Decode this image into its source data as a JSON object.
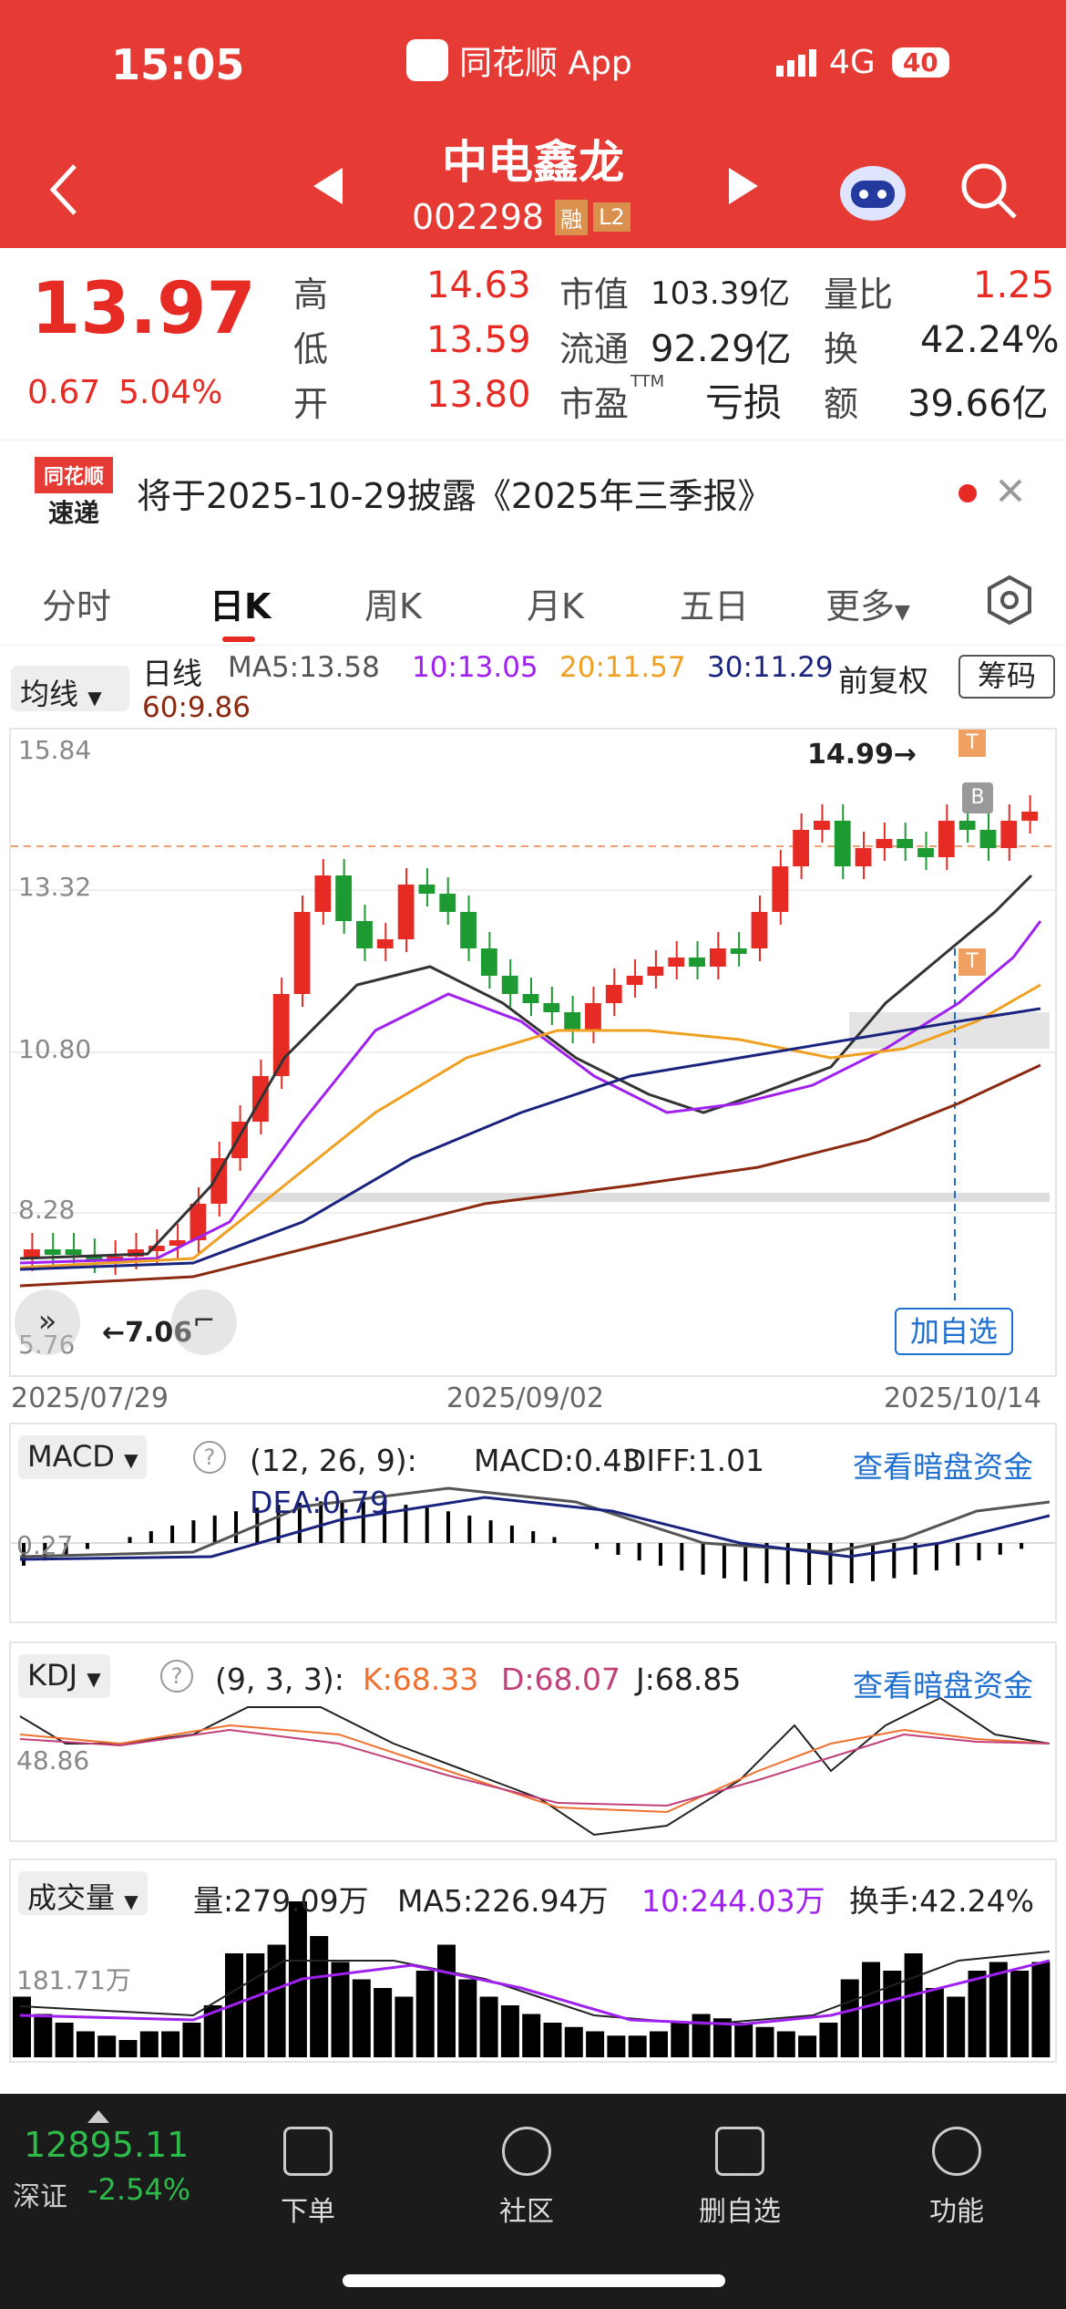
{
  "status_bar": {
    "time": "15:05",
    "app": "同花顺 App",
    "network": "4G",
    "battery": "40"
  },
  "header": {
    "stock_name": "中电鑫龙",
    "stock_code": "002298",
    "badge_margin": "融",
    "badge_level": "L2"
  },
  "quote": {
    "price": "13.97",
    "change": "0.67",
    "change_pct": "5.04%",
    "high_label": "高",
    "high": "14.63",
    "low_label": "低",
    "low": "13.59",
    "open_label": "开",
    "open": "13.80",
    "mcap_label": "市值",
    "mcap": "103.39亿",
    "float_label": "流通",
    "float": "92.29亿",
    "pe_label": "市盈",
    "pe_sup": "TTM",
    "pe": "亏损",
    "vr_label": "量比",
    "vr": "1.25",
    "turn_label": "换",
    "turn": "42.24%",
    "amt_label": "额",
    "amt": "39.66亿"
  },
  "notice": {
    "logo_top": "同花顺",
    "logo_bottom": "速递",
    "text": "将于2025-10-29披露《2025年三季报》"
  },
  "tabs": [
    "分时",
    "日K",
    "周K",
    "月K",
    "五日",
    "更多"
  ],
  "kline": {
    "ma_btn": "均线",
    "period": "日线",
    "ma5": "MA5:13.58",
    "ma10": "10:13.05",
    "ma20": "20:11.57",
    "ma30": "30:11.29",
    "ma60": "60:9.86",
    "adjust": "前复权",
    "chips": "筹码",
    "y_labels": [
      "15.84",
      "13.32",
      "10.80",
      "8.28",
      "5.76"
    ],
    "high_mark": "14.99→",
    "low_mark": "←7.06",
    "add_watch": "加自选",
    "dates": [
      "2025/07/29",
      "2025/09/02",
      "2025/10/14"
    ],
    "marker_b": "B",
    "marker_t": "T"
  },
  "macd": {
    "btn": "MACD",
    "params": "(12, 26, 9):",
    "macd": "MACD:0.43",
    "diff": "DIFF:1.01",
    "dea": "DEA:0.79",
    "link": "查看暗盘资金",
    "level": "0.27"
  },
  "kdj": {
    "btn": "KDJ",
    "params": "(9, 3, 3):",
    "k": "K:68.33",
    "d": "D:68.07",
    "j": "J:68.85",
    "link": "查看暗盘资金",
    "level": "48.86"
  },
  "vol": {
    "btn": "成交量",
    "vol": "量:279.09万",
    "ma5": "MA5:226.94万",
    "ma10": "10:244.03万",
    "turn": "换手:42.24%",
    "level": "181.71万"
  },
  "bottom": {
    "index_value": "12895.11",
    "index_name": "深证",
    "index_change": "-2.54%",
    "order": "下单",
    "community": "社区",
    "delete_watch": "删自选",
    "functions": "功能"
  },
  "colors": {
    "header_red": "#e63a35",
    "up": "#e62b24",
    "down": "#1e9a32",
    "ma5": "#333333",
    "ma10": "#a020f0",
    "ma20": "#f0a020",
    "ma30": "#1a237e",
    "ma60": "#8b2a10",
    "link": "#1f6fd1"
  }
}
